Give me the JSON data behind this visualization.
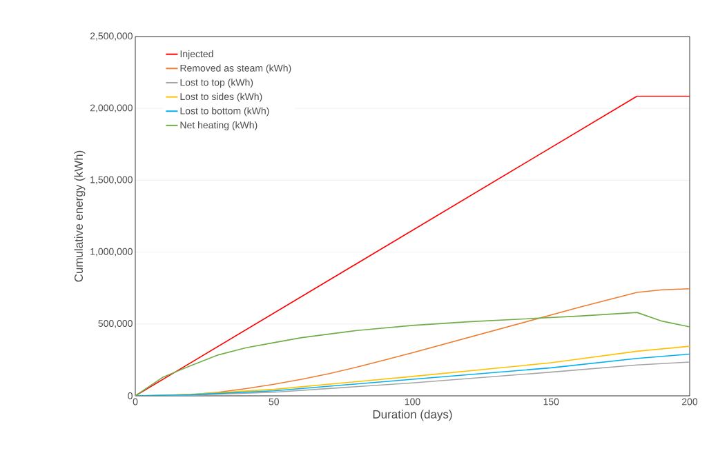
{
  "chart_data": {
    "type": "line",
    "xlabel": "Duration (days)",
    "ylabel": "Cumulative energy (kWh)",
    "xlim": [
      0,
      200
    ],
    "xticks": [
      0,
      50,
      100,
      150,
      200
    ],
    "ylim": [
      0,
      2500000
    ],
    "yticks": [
      {
        "value": 0,
        "label": "0"
      },
      {
        "value": 500000,
        "label": "500,000"
      },
      {
        "value": 1000000,
        "label": "1,000,000"
      },
      {
        "value": 1500000,
        "label": "1,500,000"
      },
      {
        "value": 2000000,
        "label": "2,000,000"
      },
      {
        "value": 2500000,
        "label": "2,500,000"
      }
    ],
    "grid": "y",
    "legend": "top left",
    "marker": "none",
    "line_style": "solid",
    "series": [
      {
        "name": "Injected",
        "color": "#ff0000",
        "x": [
          0,
          181,
          200
        ],
        "values": [
          0,
          2085000,
          2085000
        ]
      },
      {
        "name": "Removed as steam (kWh)",
        "color": "#ed7d31",
        "x": [
          0,
          10,
          20,
          30,
          40,
          50,
          60,
          70,
          80,
          90,
          100,
          120,
          140,
          160,
          181,
          190,
          200
        ],
        "values": [
          0,
          1000,
          8000,
          25000,
          50000,
          80000,
          115000,
          155000,
          200000,
          250000,
          300000,
          405000,
          510000,
          615000,
          720000,
          738000,
          745000
        ]
      },
      {
        "name": "Lost to top (kWh)",
        "color": "#a5a5a5",
        "x": [
          0,
          20,
          50,
          100,
          150,
          181,
          200
        ],
        "values": [
          0,
          5000,
          25000,
          90000,
          165000,
          215000,
          235000
        ]
      },
      {
        "name": "Lost to sides (kWh)",
        "color": "#ffc000",
        "x": [
          0,
          20,
          50,
          100,
          150,
          181,
          200
        ],
        "values": [
          0,
          10000,
          45000,
          135000,
          230000,
          310000,
          345000
        ]
      },
      {
        "name": "Lost to bottom (kWh)",
        "color": "#00b0f0",
        "x": [
          0,
          20,
          50,
          100,
          150,
          181,
          200
        ],
        "values": [
          0,
          8000,
          35000,
          115000,
          195000,
          260000,
          290000
        ]
      },
      {
        "name": "Net heating (kWh)",
        "color": "#70ad47",
        "x": [
          0,
          10,
          20,
          30,
          40,
          50,
          60,
          80,
          100,
          120,
          140,
          160,
          181,
          190,
          200
        ],
        "values": [
          0,
          130000,
          210000,
          285000,
          335000,
          370000,
          405000,
          455000,
          490000,
          515000,
          535000,
          555000,
          580000,
          520000,
          480000
        ]
      }
    ]
  }
}
